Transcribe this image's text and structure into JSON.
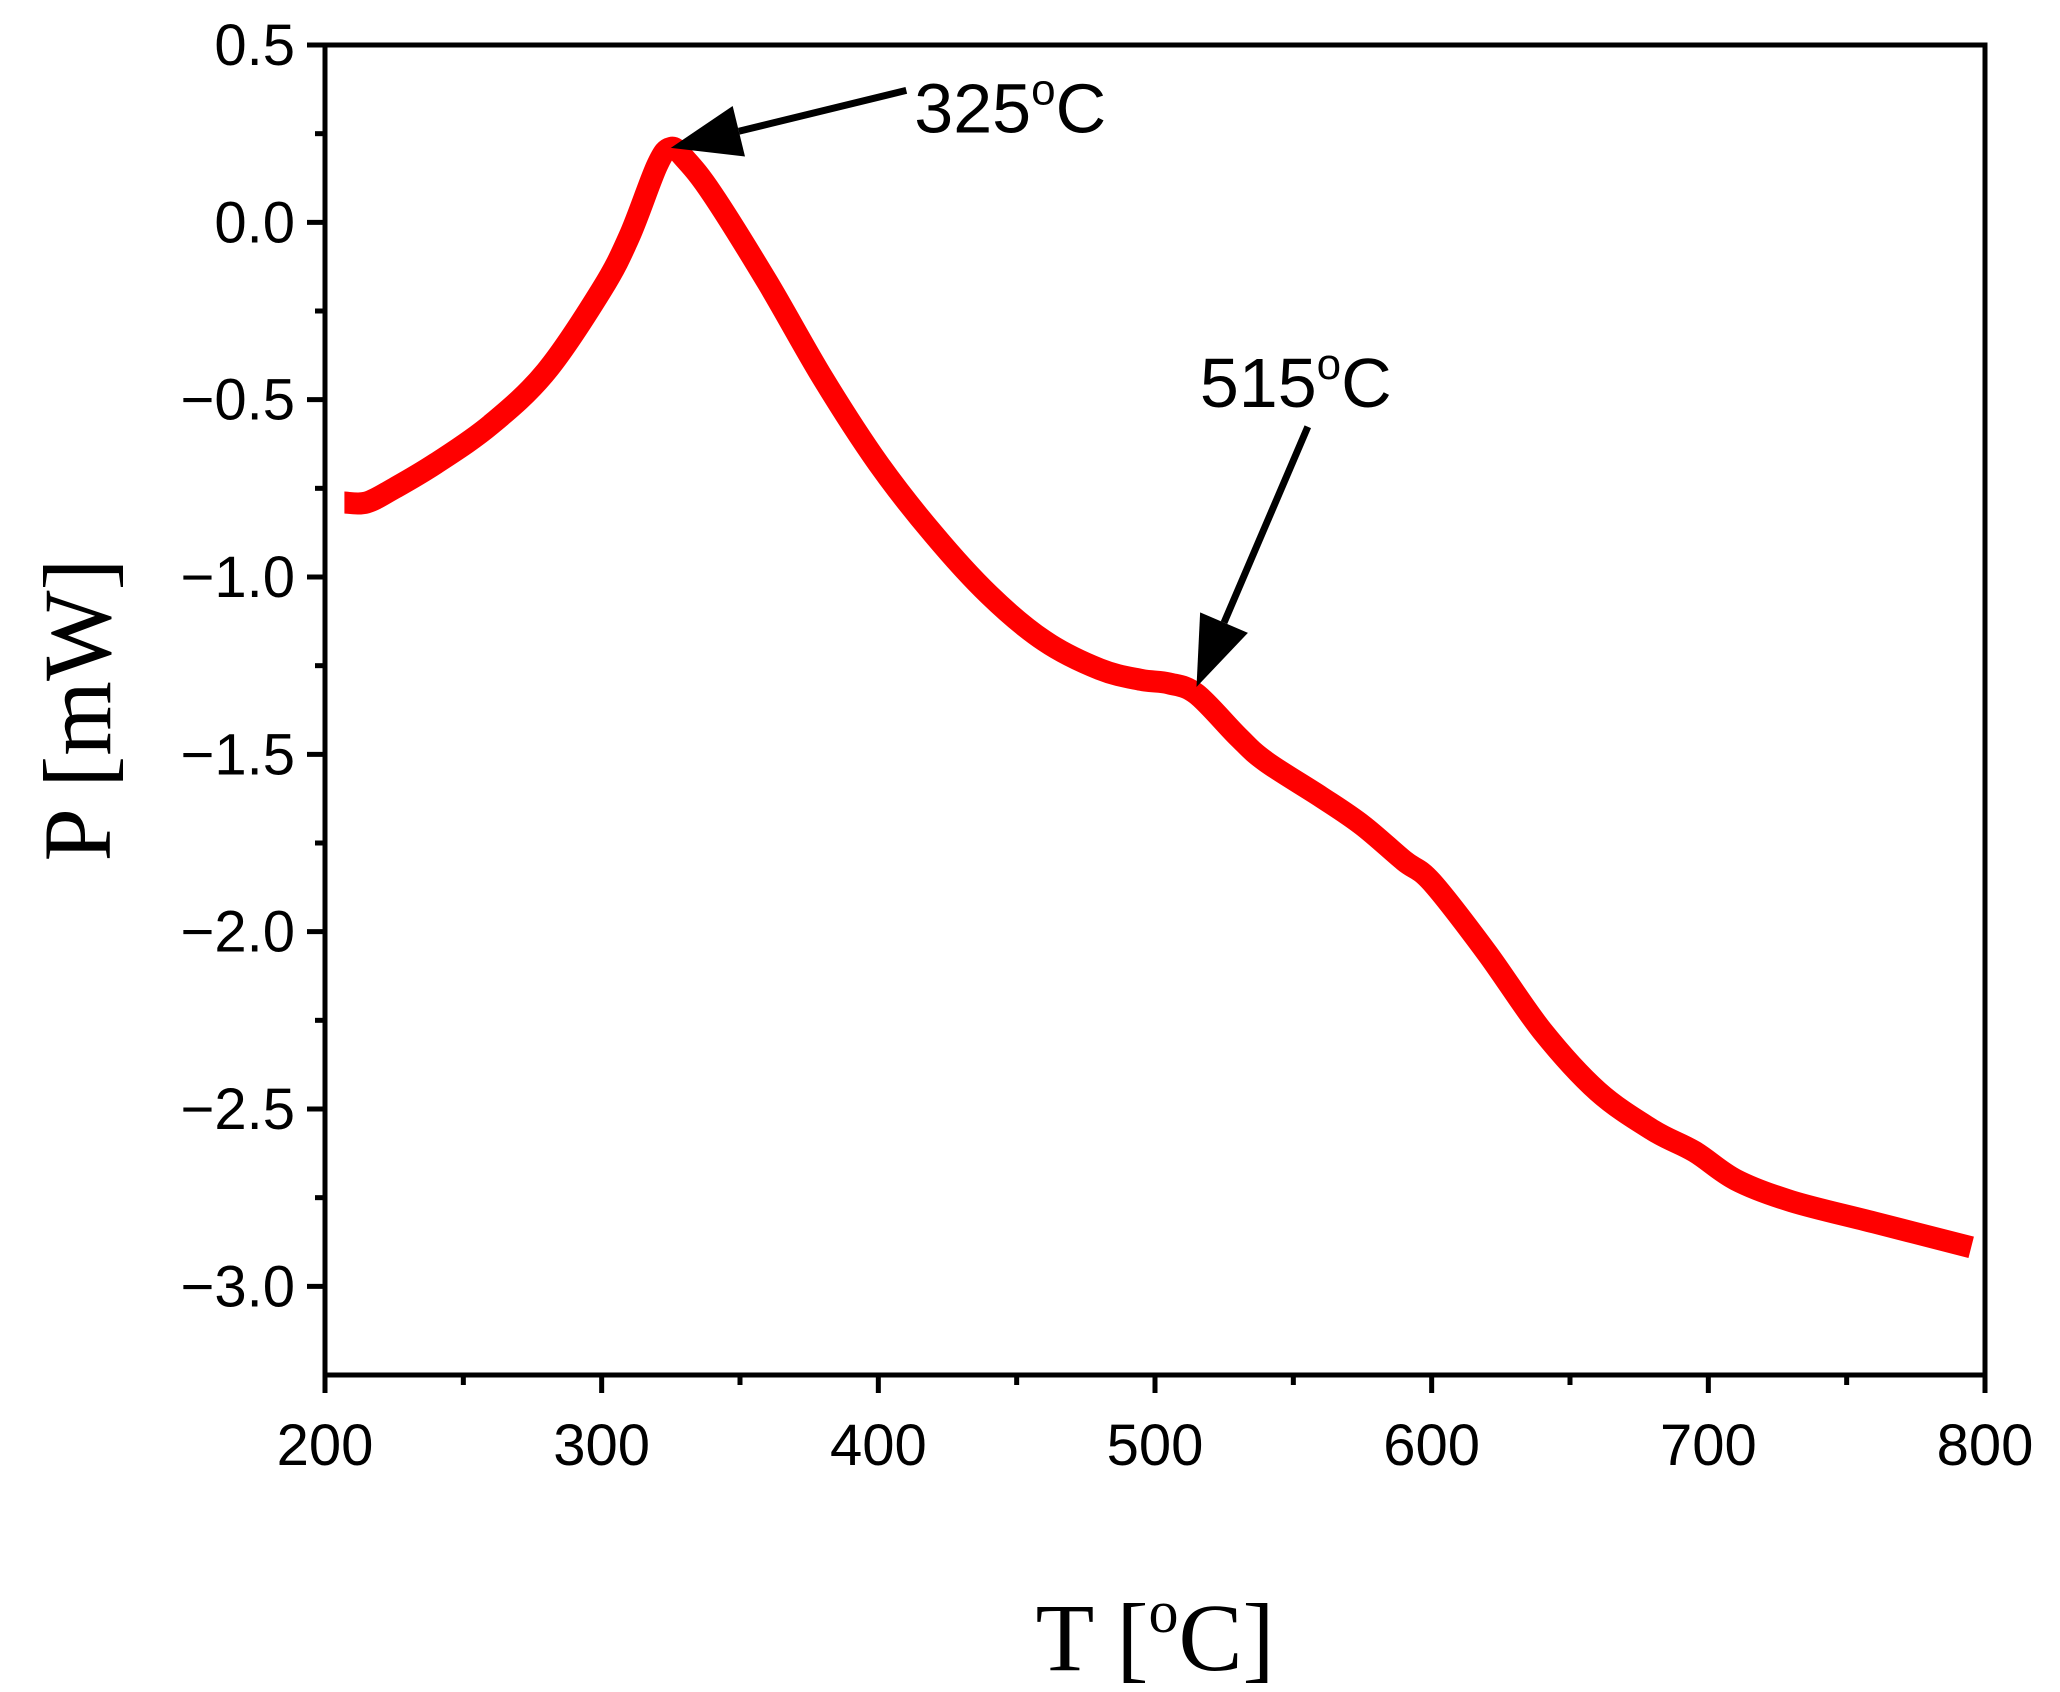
{
  "chart_data": {
    "type": "line",
    "title": "",
    "xlabel": {
      "main": "T [",
      "super": "o",
      "unit": "C]"
    },
    "ylabel": "P [mW]",
    "xlim": [
      200,
      800
    ],
    "ylim": [
      -3.25,
      0.5
    ],
    "x_major_ticks": [
      200,
      300,
      400,
      500,
      600,
      700,
      800
    ],
    "x_minor_ticks": [
      250,
      350,
      450,
      550,
      650,
      750
    ],
    "x_tick_labels": [
      "200",
      "300",
      "400",
      "500",
      "600",
      "700",
      "800"
    ],
    "y_major_ticks": [
      0.5,
      0.0,
      -0.5,
      -1.0,
      -1.5,
      -2.0,
      -2.5,
      -3.0
    ],
    "y_minor_ticks": [
      0.25,
      -0.25,
      -0.75,
      -1.25,
      -1.75,
      -2.25,
      -2.75
    ],
    "y_tick_labels": [
      "0.5",
      "0.0",
      "−0.5",
      "−1.0",
      "−1.5",
      "−2.0",
      "−2.5",
      "−3.0"
    ],
    "grid": false,
    "series": [
      {
        "name": "P",
        "color": "#ff0000",
        "x": [
          207,
          215,
          225,
          240,
          260,
          280,
          300,
          310,
          320,
          325,
          330,
          340,
          360,
          380,
          400,
          420,
          440,
          460,
          480,
          495,
          505,
          515,
          530,
          540,
          560,
          575,
          590,
          600,
          620,
          640,
          660,
          680,
          695,
          710,
          730,
          760,
          795
        ],
        "y": [
          -0.79,
          -0.79,
          -0.75,
          -0.68,
          -0.57,
          -0.42,
          -0.19,
          -0.04,
          0.16,
          0.21,
          0.18,
          0.08,
          -0.17,
          -0.44,
          -0.68,
          -0.88,
          -1.05,
          -1.18,
          -1.26,
          -1.29,
          -1.3,
          -1.33,
          -1.45,
          -1.52,
          -1.62,
          -1.7,
          -1.8,
          -1.86,
          -2.06,
          -2.28,
          -2.45,
          -2.56,
          -2.62,
          -2.7,
          -2.76,
          -2.82,
          -2.89
        ]
      }
    ],
    "annotations": [
      {
        "label": "325",
        "super": "o",
        "unit": "C",
        "point": [
          325,
          0.21
        ],
        "text_at": [
          413,
          0.31
        ]
      },
      {
        "label": "515",
        "super": "o",
        "unit": "C",
        "point": [
          515,
          -1.31
        ],
        "text_at": [
          548,
          -0.52
        ]
      }
    ]
  }
}
